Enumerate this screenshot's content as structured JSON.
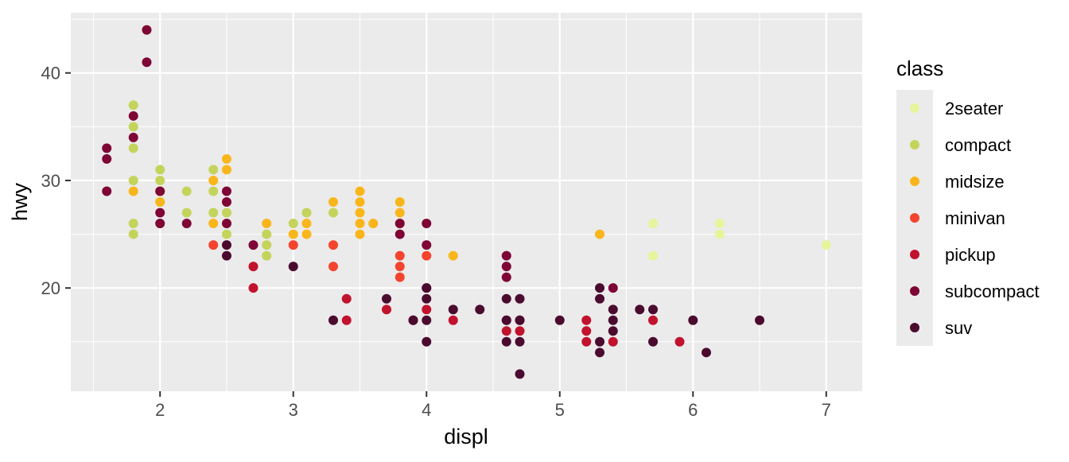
{
  "chart_data": {
    "type": "scatter",
    "title": "",
    "xlabel": "displ",
    "ylabel": "hwy",
    "xlim": [
      1.33,
      7.27
    ],
    "ylim": [
      10.4,
      45.6
    ],
    "x_ticks": [
      2,
      3,
      4,
      5,
      6,
      7
    ],
    "y_ticks": [
      20,
      30,
      40
    ],
    "grid": true,
    "legend": {
      "title": "class",
      "placement": "right",
      "entries": [
        "2seater",
        "compact",
        "midsize",
        "minivan",
        "pickup",
        "subcompact",
        "suv"
      ]
    },
    "colors": {
      "2seater": "#E6F59C",
      "compact": "#C4D45B",
      "midsize": "#F9B61C",
      "minivan": "#F4442E",
      "pickup": "#C1122E",
      "subcompact": "#7E0535",
      "suv": "#4B0B2F"
    },
    "series": [
      {
        "name": "2seater",
        "points": [
          [
            5.7,
            26
          ],
          [
            5.7,
            23
          ],
          [
            6.2,
            26
          ],
          [
            6.2,
            25
          ],
          [
            7.0,
            24
          ]
        ]
      },
      {
        "name": "compact",
        "points": [
          [
            1.8,
            37
          ],
          [
            1.8,
            35
          ],
          [
            1.8,
            33
          ],
          [
            1.8,
            30
          ],
          [
            1.8,
            26
          ],
          [
            1.8,
            25
          ],
          [
            2.0,
            31
          ],
          [
            2.0,
            30
          ],
          [
            2.0,
            29
          ],
          [
            2.0,
            28
          ],
          [
            2.0,
            26
          ],
          [
            2.2,
            29
          ],
          [
            2.2,
            27
          ],
          [
            2.4,
            31
          ],
          [
            2.4,
            29
          ],
          [
            2.4,
            27
          ],
          [
            2.5,
            27
          ],
          [
            2.5,
            26
          ],
          [
            2.5,
            25
          ],
          [
            2.8,
            25
          ],
          [
            2.8,
            24
          ],
          [
            2.8,
            23
          ],
          [
            3.0,
            26
          ],
          [
            3.1,
            27
          ],
          [
            3.3,
            27
          ]
        ]
      },
      {
        "name": "midsize",
        "points": [
          [
            1.8,
            29
          ],
          [
            2.0,
            29
          ],
          [
            2.0,
            28
          ],
          [
            2.4,
            30
          ],
          [
            2.4,
            26
          ],
          [
            2.5,
            32
          ],
          [
            2.5,
            31
          ],
          [
            2.8,
            26
          ],
          [
            3.0,
            25
          ],
          [
            3.1,
            26
          ],
          [
            3.1,
            25
          ],
          [
            3.3,
            28
          ],
          [
            3.5,
            29
          ],
          [
            3.5,
            28
          ],
          [
            3.5,
            27
          ],
          [
            3.5,
            26
          ],
          [
            3.5,
            25
          ],
          [
            3.6,
            26
          ],
          [
            3.8,
            28
          ],
          [
            3.8,
            27
          ],
          [
            3.8,
            26
          ],
          [
            4.2,
            23
          ],
          [
            5.3,
            25
          ]
        ]
      },
      {
        "name": "minivan",
        "points": [
          [
            2.4,
            24
          ],
          [
            3.0,
            24
          ],
          [
            3.3,
            24
          ],
          [
            3.3,
            22
          ],
          [
            3.8,
            23
          ],
          [
            3.8,
            22
          ],
          [
            3.8,
            21
          ],
          [
            4.0,
            23
          ]
        ]
      },
      {
        "name": "pickup",
        "points": [
          [
            2.7,
            22
          ],
          [
            2.7,
            20
          ],
          [
            3.4,
            19
          ],
          [
            3.4,
            17
          ],
          [
            3.7,
            18
          ],
          [
            3.9,
            17
          ],
          [
            4.0,
            20
          ],
          [
            4.0,
            18
          ],
          [
            4.2,
            17
          ],
          [
            4.6,
            17
          ],
          [
            4.6,
            16
          ],
          [
            4.7,
            17
          ],
          [
            4.7,
            16
          ],
          [
            5.2,
            17
          ],
          [
            5.2,
            16
          ],
          [
            5.2,
            15
          ],
          [
            5.4,
            15
          ],
          [
            5.7,
            17
          ],
          [
            5.9,
            15
          ]
        ]
      },
      {
        "name": "subcompact",
        "points": [
          [
            1.6,
            33
          ],
          [
            1.6,
            32
          ],
          [
            1.6,
            29
          ],
          [
            1.8,
            36
          ],
          [
            1.8,
            34
          ],
          [
            1.9,
            44
          ],
          [
            1.9,
            41
          ],
          [
            2.0,
            29
          ],
          [
            2.0,
            27
          ],
          [
            2.0,
            26
          ],
          [
            2.2,
            26
          ],
          [
            2.5,
            29
          ],
          [
            2.5,
            28
          ],
          [
            2.5,
            26
          ],
          [
            2.7,
            24
          ],
          [
            3.8,
            25
          ],
          [
            3.8,
            26
          ],
          [
            4.0,
            26
          ],
          [
            4.0,
            24
          ],
          [
            4.6,
            23
          ],
          [
            4.6,
            22
          ],
          [
            4.6,
            21
          ],
          [
            5.4,
            20
          ]
        ]
      },
      {
        "name": "suv",
        "points": [
          [
            2.5,
            24
          ],
          [
            2.5,
            23
          ],
          [
            3.0,
            22
          ],
          [
            3.3,
            17
          ],
          [
            3.7,
            19
          ],
          [
            3.9,
            17
          ],
          [
            4.0,
            20
          ],
          [
            4.0,
            19
          ],
          [
            4.0,
            17
          ],
          [
            4.0,
            15
          ],
          [
            4.2,
            18
          ],
          [
            4.4,
            18
          ],
          [
            4.6,
            19
          ],
          [
            4.6,
            17
          ],
          [
            4.6,
            15
          ],
          [
            4.7,
            19
          ],
          [
            4.7,
            17
          ],
          [
            4.7,
            15
          ],
          [
            4.7,
            12
          ],
          [
            5.0,
            17
          ],
          [
            5.3,
            20
          ],
          [
            5.3,
            19
          ],
          [
            5.3,
            15
          ],
          [
            5.3,
            14
          ],
          [
            5.4,
            18
          ],
          [
            5.4,
            17
          ],
          [
            5.4,
            16
          ],
          [
            5.6,
            18
          ],
          [
            5.7,
            18
          ],
          [
            5.7,
            15
          ],
          [
            6.0,
            17
          ],
          [
            6.1,
            14
          ],
          [
            6.5,
            17
          ]
        ]
      }
    ]
  }
}
